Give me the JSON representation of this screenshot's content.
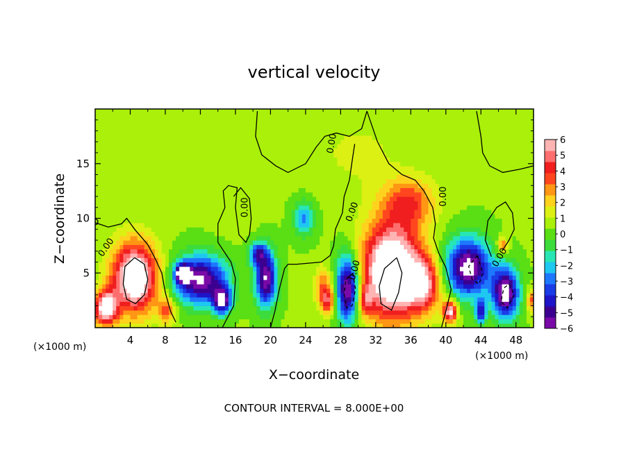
{
  "chart_data": {
    "type": "heatmap",
    "title": "vertical velocity",
    "xlabel": "X−coordinate",
    "ylabel": "Z−coordinate",
    "x_unit_label_left": "(×1000 m)",
    "x_unit_label_right": "(×1000 m)",
    "xlim": [
      0,
      50
    ],
    "ylim": [
      0,
      20
    ],
    "x_ticks": [
      4,
      8,
      12,
      16,
      20,
      24,
      28,
      32,
      36,
      40,
      44,
      48
    ],
    "y_ticks": [
      5,
      10,
      15
    ],
    "colorbar": {
      "range": [
        -6,
        6
      ],
      "ticks": [
        6,
        5,
        4,
        3,
        2,
        1,
        0,
        -1,
        -2,
        -3,
        -4,
        -5,
        -6
      ],
      "tick_labels": [
        "6",
        "5",
        "4",
        "3",
        "2",
        "1",
        "0",
        "−1",
        "−2",
        "−3",
        "−4",
        "−5",
        "−6"
      ],
      "colors": [
        "#7a0aa8",
        "#3c0090",
        "#1e14c8",
        "#1a3ce6",
        "#1e78ff",
        "#1ec8f0",
        "#28e6b4",
        "#3cdc3c",
        "#5ade14",
        "#aaf00a",
        "#dcf014",
        "#ffd21e",
        "#ff9614",
        "#ff461e",
        "#f01e1e",
        "#ff6e6e",
        "#ffb4b4"
      ]
    },
    "contour_label": "0.00",
    "footer": "CONTOUR INTERVAL = 8.000E+00",
    "features": [
      {
        "x": 4.5,
        "z": 4.6,
        "w": 7.5,
        "rx": 2.6,
        "rz": 3.2
      },
      {
        "x": 1.2,
        "z": 1.8,
        "w": 6.5,
        "rx": 1.3,
        "rz": 1.6
      },
      {
        "x": 8.2,
        "z": 1.6,
        "w": 3.0,
        "rx": 1.0,
        "rz": 1.2
      },
      {
        "x": 12.0,
        "z": 4.4,
        "w": -6.5,
        "rx": 3.0,
        "rz": 2.2
      },
      {
        "x": 10.0,
        "z": 5.0,
        "w": -7.0,
        "rx": 0.8,
        "rz": 0.8
      },
      {
        "x": 14.5,
        "z": 2.5,
        "w": -6.0,
        "rx": 1.0,
        "rz": 1.2
      },
      {
        "x": 19.5,
        "z": 4.5,
        "w": -6.5,
        "rx": 1.2,
        "rz": 2.5
      },
      {
        "x": 18.5,
        "z": 6.8,
        "w": -4.0,
        "rx": 1.0,
        "rz": 1.0
      },
      {
        "x": 23.8,
        "z": 10.0,
        "w": -3.0,
        "rx": 1.2,
        "rz": 1.6
      },
      {
        "x": 26.0,
        "z": 4.0,
        "w": 2.5,
        "rx": 1.0,
        "rz": 1.6
      },
      {
        "x": 26.5,
        "z": 2.5,
        "w": 4.0,
        "rx": 0.9,
        "rz": 1.2
      },
      {
        "x": 28.8,
        "z": 3.6,
        "w": -7.0,
        "rx": 1.3,
        "rz": 3.0
      },
      {
        "x": 33.8,
        "z": 5.2,
        "w": 8.5,
        "rx": 3.3,
        "rz": 4.3
      },
      {
        "x": 35.8,
        "z": 11.5,
        "w": 3.2,
        "rx": 3.0,
        "rz": 2.2
      },
      {
        "x": 37.5,
        "z": 4.0,
        "w": 4.5,
        "rx": 2.0,
        "rz": 2.5
      },
      {
        "x": 30.8,
        "z": 2.5,
        "w": 3.0,
        "rx": 0.8,
        "rz": 1.2
      },
      {
        "x": 42.5,
        "z": 5.5,
        "w": -7.0,
        "rx": 2.5,
        "rz": 2.6
      },
      {
        "x": 40.5,
        "z": 1.5,
        "w": 6.0,
        "rx": 0.8,
        "rz": 1.0
      },
      {
        "x": 46.8,
        "z": 3.2,
        "w": -7.0,
        "rx": 1.5,
        "rz": 2.3
      },
      {
        "x": 44.0,
        "z": 1.5,
        "w": -5.0,
        "rx": 0.6,
        "rz": 1.0
      },
      {
        "x": 46.5,
        "z": 7.5,
        "w": 3.0,
        "rx": 0.6,
        "rz": 0.8
      },
      {
        "x": 49.8,
        "z": 2.5,
        "w": 3.0,
        "rx": 0.6,
        "rz": 1.0
      },
      {
        "x": 16.0,
        "z": 12.0,
        "w": 0.6,
        "rx": 2.5,
        "rz": 3.0
      },
      {
        "x": 30.0,
        "z": 16.0,
        "w": 0.8,
        "rx": 6.0,
        "rz": 4.0
      }
    ],
    "contours": [
      {
        "name": "contour-zero-left",
        "dashed": false,
        "points": [
          [
            0,
            9.6
          ],
          [
            1.5,
            9.2
          ],
          [
            3.0,
            9.5
          ],
          [
            3.6,
            10.0
          ],
          [
            4.5,
            9.0
          ],
          [
            6.0,
            7.6
          ],
          [
            6.8,
            6.4
          ],
          [
            7.6,
            5.0
          ],
          [
            8.0,
            3.2
          ],
          [
            8.6,
            1.5
          ],
          [
            9.2,
            0.5
          ]
        ]
      },
      {
        "x_note": "open contour near x=0.2",
        "name": "contour-zero-edge",
        "dashed": false,
        "points": [
          [
            0.0,
            10.0
          ],
          [
            0.3,
            9.8
          ],
          [
            0.3,
            9.5
          ],
          [
            0.0,
            9.4
          ]
        ]
      },
      {
        "name": "contour-zero-center",
        "dashed": false,
        "points": [
          [
            14.5,
            0.0
          ],
          [
            15.8,
            2.0
          ],
          [
            16.0,
            4.5
          ],
          [
            15.5,
            6.0
          ],
          [
            14.0,
            7.8
          ],
          [
            14.0,
            9.5
          ],
          [
            14.8,
            11.0
          ],
          [
            14.6,
            12.5
          ],
          [
            15.2,
            13.0
          ],
          [
            16.2,
            12.8
          ],
          [
            16.0,
            11.0
          ],
          [
            16.4,
            8.5
          ],
          [
            17.2,
            7.8
          ],
          [
            17.6,
            8.5
          ],
          [
            17.8,
            10.0
          ],
          [
            17.6,
            11.8
          ],
          [
            16.6,
            12.8
          ],
          [
            15.8,
            12.0
          ]
        ]
      },
      {
        "name": "contour-zero-upper",
        "dashed": false,
        "points": [
          [
            18.5,
            19.8
          ],
          [
            18.3,
            17.5
          ],
          [
            19.0,
            15.8
          ],
          [
            20.6,
            14.8
          ],
          [
            22.0,
            14.2
          ],
          [
            24.0,
            15.0
          ],
          [
            25.2,
            16.5
          ],
          [
            26.2,
            17.5
          ],
          [
            27.5,
            17.8
          ],
          [
            29.0,
            17.5
          ],
          [
            30.4,
            18.2
          ],
          [
            31.0,
            19.8
          ]
        ]
      },
      {
        "name": "contour-zero-mid",
        "dashed": false,
        "points": [
          [
            29.6,
            16.8
          ],
          [
            29.3,
            15.2
          ],
          [
            29.0,
            13.5
          ],
          [
            28.4,
            12.0
          ],
          [
            28.2,
            10.5
          ],
          [
            27.4,
            9.0
          ],
          [
            27.2,
            7.5
          ],
          [
            26.8,
            6.6
          ],
          [
            25.8,
            6.0
          ],
          [
            23.0,
            5.8
          ],
          [
            22.0,
            5.8
          ],
          [
            21.6,
            5.4
          ],
          [
            21.0,
            3.5
          ],
          [
            20.5,
            1.5
          ],
          [
            20.0,
            0.0
          ]
        ]
      },
      {
        "name": "contour-zero-right",
        "dashed": false,
        "points": [
          [
            31.0,
            19.8
          ],
          [
            32.2,
            17.0
          ],
          [
            33.5,
            15.0
          ],
          [
            35.0,
            14.0
          ],
          [
            36.5,
            13.5
          ],
          [
            37.5,
            12.5
          ],
          [
            38.5,
            11.0
          ],
          [
            38.8,
            9.5
          ],
          [
            38.6,
            8.2
          ],
          [
            39.2,
            6.8
          ],
          [
            40.0,
            5.5
          ],
          [
            40.6,
            3.5
          ],
          [
            40.0,
            1.5
          ],
          [
            39.5,
            0.0
          ]
        ]
      },
      {
        "name": "contour-zero-far",
        "dashed": false,
        "points": [
          [
            43.5,
            19.8
          ],
          [
            44.0,
            17.5
          ],
          [
            44.2,
            16.0
          ],
          [
            45.0,
            14.8
          ],
          [
            46.5,
            14.2
          ],
          [
            48.5,
            14.5
          ],
          [
            50.0,
            14.8
          ]
        ]
      },
      {
        "name": "contour-zero-rightedge",
        "dashed": false,
        "points": [
          [
            45.2,
            6.5
          ],
          [
            44.5,
            8.0
          ],
          [
            44.8,
            9.8
          ],
          [
            45.8,
            11.0
          ],
          [
            46.8,
            11.5
          ],
          [
            47.6,
            10.5
          ],
          [
            47.8,
            9.0
          ],
          [
            47.2,
            8.0
          ],
          [
            46.4,
            7.0
          ]
        ]
      },
      {
        "name": "contour-pos-left-core",
        "dashed": false,
        "points": [
          [
            4.5,
            6.4
          ],
          [
            5.6,
            5.8
          ],
          [
            6.0,
            4.4
          ],
          [
            5.6,
            3.0
          ],
          [
            4.6,
            2.2
          ],
          [
            3.6,
            2.6
          ],
          [
            3.2,
            4.0
          ],
          [
            3.4,
            5.6
          ],
          [
            4.5,
            6.4
          ]
        ]
      },
      {
        "name": "contour-pos-right-core",
        "dashed": false,
        "points": [
          [
            34.4,
            6.4
          ],
          [
            35.0,
            5.0
          ],
          [
            34.6,
            3.2
          ],
          [
            33.8,
            1.6
          ],
          [
            32.6,
            2.2
          ],
          [
            32.4,
            3.8
          ],
          [
            33.0,
            5.4
          ],
          [
            34.4,
            6.4
          ]
        ]
      },
      {
        "name": "contour-neg-core-28",
        "dashed": true,
        "points": [
          [
            29.4,
            5.0
          ],
          [
            29.7,
            3.5
          ],
          [
            29.3,
            2.0
          ],
          [
            28.7,
            1.8
          ],
          [
            28.4,
            3.0
          ],
          [
            28.6,
            4.4
          ],
          [
            29.4,
            5.0
          ]
        ]
      },
      {
        "name": "contour-neg-core-43",
        "dashed": true,
        "points": [
          [
            43.6,
            6.6
          ],
          [
            44.2,
            5.0
          ],
          [
            43.8,
            4.0
          ],
          [
            43.0,
            4.4
          ],
          [
            42.6,
            5.6
          ],
          [
            43.6,
            6.6
          ]
        ]
      },
      {
        "name": "contour-neg-core-47",
        "dashed": true,
        "points": [
          [
            47.2,
            4.0
          ],
          [
            47.8,
            3.0
          ],
          [
            47.0,
            1.8
          ],
          [
            46.3,
            2.4
          ],
          [
            46.6,
            3.6
          ],
          [
            47.2,
            4.0
          ]
        ]
      }
    ],
    "contour_labels": [
      {
        "x": 1.5,
        "z": 7.2,
        "angle": -55
      },
      {
        "x": 17.4,
        "z": 11.0,
        "angle": -90
      },
      {
        "x": 27.3,
        "z": 16.8,
        "angle": -80
      },
      {
        "x": 29.6,
        "z": 10.5,
        "angle": -70
      },
      {
        "x": 29.9,
        "z": 5.2,
        "angle": -75
      },
      {
        "x": 40.0,
        "z": 12.0,
        "angle": -90
      },
      {
        "x": 46.4,
        "z": 6.3,
        "angle": -60
      }
    ]
  }
}
